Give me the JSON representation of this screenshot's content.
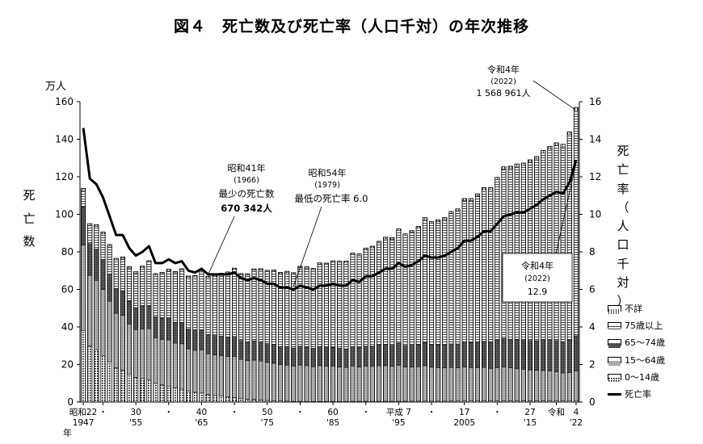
{
  "title": "図４　死亡数及び死亡率（人口千対）の年次推移",
  "left_unit": "万人",
  "left_axis_chars": [
    "死",
    "亡",
    "数"
  ],
  "right_axis_chars": [
    "死",
    "亡",
    "率",
    "（",
    "人",
    "口",
    "千",
    "対",
    "）"
  ],
  "x_axis_unit": "年",
  "chart_data": {
    "type": "bar",
    "stacked_segments": [
      "0~14歳",
      "15~64歳",
      "65~74歳",
      "75歳以上",
      "不詳"
    ],
    "legend": [
      "不詳",
      "75歳以上",
      "65～74歳",
      "15～64歳",
      "0～14歳",
      "死亡率"
    ],
    "y_left": {
      "label": "死亡数",
      "unit": "万人",
      "range": [
        0,
        160
      ],
      "ticks": [
        0,
        20,
        40,
        60,
        80,
        100,
        120,
        140,
        160
      ]
    },
    "y_right": {
      "label": "死亡率（人口千対）",
      "range": [
        0,
        16
      ],
      "ticks": [
        0,
        2,
        4,
        6,
        8,
        10,
        12,
        14,
        16
      ]
    },
    "x_tick_labels": [
      {
        "year": 1947,
        "top": "昭和22",
        "bottom": "1947"
      },
      {
        "year": 1950,
        "top": "・",
        "bottom": ""
      },
      {
        "year": 1955,
        "top": "30",
        "bottom": "'55"
      },
      {
        "year": 1960,
        "top": "・",
        "bottom": ""
      },
      {
        "year": 1965,
        "top": "40",
        "bottom": "'65"
      },
      {
        "year": 1970,
        "top": "・",
        "bottom": ""
      },
      {
        "year": 1975,
        "top": "50",
        "bottom": "'75"
      },
      {
        "year": 1980,
        "top": "・",
        "bottom": ""
      },
      {
        "year": 1985,
        "top": "60",
        "bottom": "'85"
      },
      {
        "year": 1990,
        "top": "・",
        "bottom": ""
      },
      {
        "year": 1995,
        "top": "平成 7",
        "bottom": "'95"
      },
      {
        "year": 2000,
        "top": "・",
        "bottom": ""
      },
      {
        "year": 2005,
        "top": "17",
        "bottom": "2005"
      },
      {
        "year": 2010,
        "top": "・",
        "bottom": ""
      },
      {
        "year": 2015,
        "top": "27",
        "bottom": "'15"
      },
      {
        "year": 2019,
        "top": "令和",
        "bottom": ""
      },
      {
        "year": 2022,
        "top": "4",
        "bottom": "'22"
      }
    ],
    "years": [
      1947,
      1948,
      1949,
      1950,
      1951,
      1952,
      1953,
      1954,
      1955,
      1956,
      1957,
      1958,
      1959,
      1960,
      1961,
      1962,
      1963,
      1964,
      1965,
      1966,
      1967,
      1968,
      1969,
      1970,
      1971,
      1972,
      1973,
      1974,
      1975,
      1976,
      1977,
      1978,
      1979,
      1980,
      1981,
      1982,
      1983,
      1984,
      1985,
      1986,
      1987,
      1988,
      1989,
      1990,
      1991,
      1992,
      1993,
      1994,
      1995,
      1996,
      1997,
      1998,
      1999,
      2000,
      2001,
      2002,
      2003,
      2004,
      2005,
      2006,
      2007,
      2008,
      2009,
      2010,
      2011,
      2012,
      2013,
      2014,
      2015,
      2016,
      2017,
      2018,
      2019,
      2020,
      2021,
      2022
    ],
    "deaths_total_10k": [
      113.8,
      95.0,
      94.5,
      90.5,
      83.9,
      76.5,
      77.3,
      72.1,
      69.4,
      72.4,
      75.3,
      68.4,
      69.0,
      70.7,
      69.5,
      71.0,
      67.1,
      67.3,
      70.0,
      67.0,
      67.5,
      68.6,
      69.3,
      71.3,
      68.4,
      68.3,
      70.9,
      71.0,
      70.2,
      70.3,
      69.0,
      69.6,
      68.9,
      72.3,
      72.0,
      71.2,
      74.1,
      74.0,
      75.2,
      75.1,
      75.1,
      79.3,
      78.9,
      82.0,
      83.0,
      85.6,
      87.8,
      87.6,
      92.2,
      89.6,
      91.3,
      93.6,
      98.2,
      96.2,
      97.0,
      98.2,
      101.5,
      102.9,
      108.4,
      108.4,
      110.9,
      114.2,
      114.2,
      119.7,
      125.3,
      125.6,
      126.8,
      127.3,
      129.0,
      130.8,
      134.0,
      136.2,
      138.1,
      137.3,
      143.9,
      156.9
    ],
    "death_rate_per_1000": [
      14.6,
      11.9,
      11.6,
      10.9,
      9.9,
      8.9,
      8.9,
      8.2,
      7.8,
      8.0,
      8.3,
      7.4,
      7.4,
      7.6,
      7.4,
      7.5,
      7.0,
      6.9,
      7.1,
      6.8,
      6.8,
      6.8,
      6.8,
      6.9,
      6.6,
      6.5,
      6.6,
      6.5,
      6.3,
      6.3,
      6.1,
      6.1,
      6.0,
      6.2,
      6.1,
      6.0,
      6.2,
      6.2,
      6.3,
      6.2,
      6.2,
      6.5,
      6.4,
      6.7,
      6.7,
      6.9,
      7.1,
      7.1,
      7.4,
      7.2,
      7.3,
      7.5,
      7.8,
      7.7,
      7.7,
      7.8,
      8.0,
      8.2,
      8.6,
      8.6,
      8.8,
      9.1,
      9.1,
      9.5,
      9.9,
      10.0,
      10.1,
      10.1,
      10.3,
      10.5,
      10.8,
      11.0,
      11.2,
      11.1,
      11.7,
      12.9
    ],
    "annotations": [
      {
        "l1": "昭和41年",
        "l2": "(1966)",
        "l3": "最少の死亡数",
        "l4": "670 342人"
      },
      {
        "l1": "昭和54年",
        "l2": "(1979)",
        "l3": "最低の死亡率 6.0"
      },
      {
        "l1": "令和4年",
        "l2": "(2022)",
        "l3": "1 568 961人"
      },
      {
        "l1": "令和4年",
        "l2": "(2022)",
        "l3": "12.9"
      }
    ]
  }
}
